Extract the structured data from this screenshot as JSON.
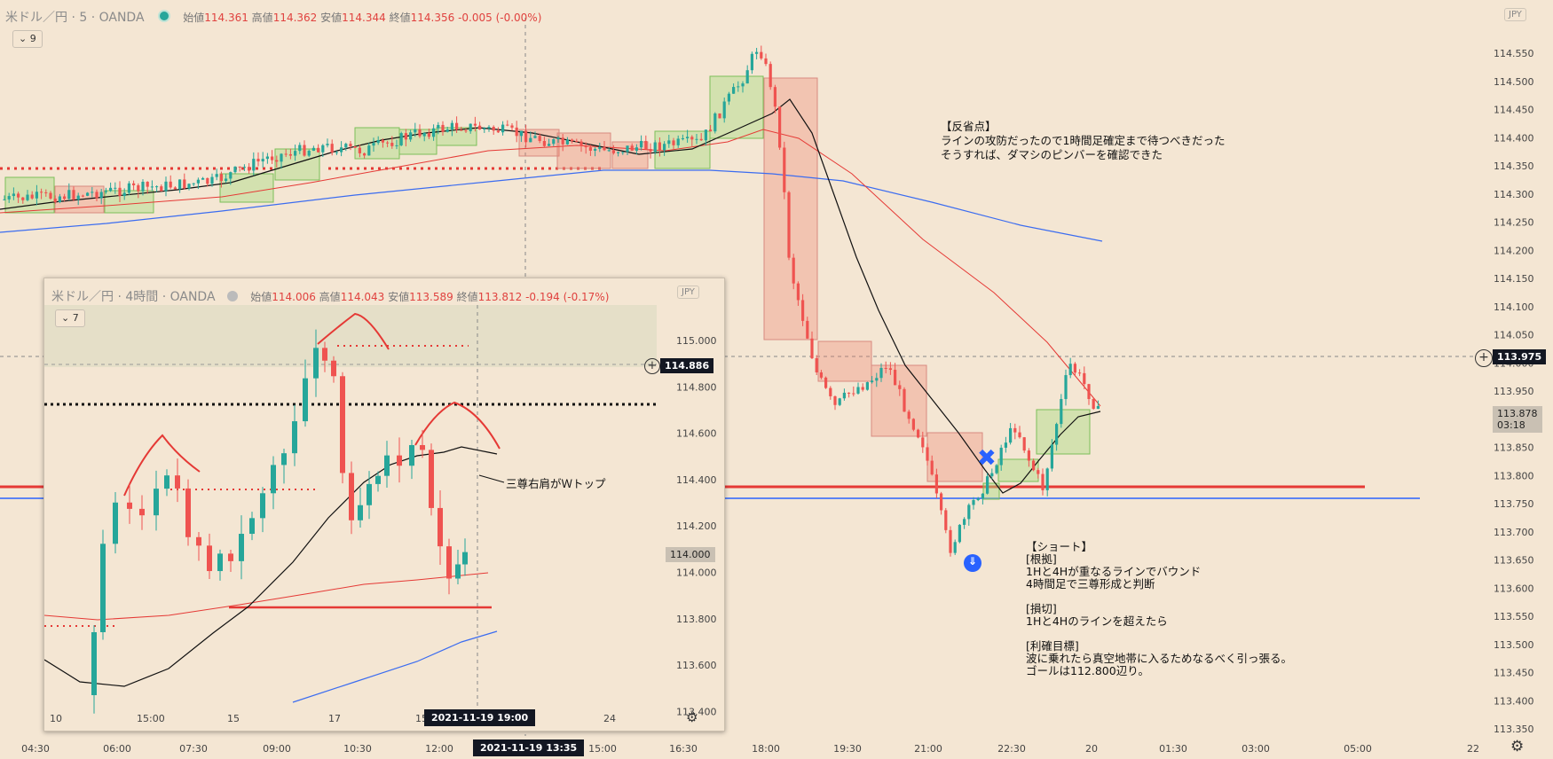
{
  "main": {
    "symbol": "米ドル／円 · 5 · OANDA",
    "ohlc": {
      "o_label": "始値",
      "o": "114.361",
      "h_label": "高値",
      "h": "114.362",
      "l_label": "安値",
      "l": "114.344",
      "c_label": "終値",
      "c": "114.356",
      "chg": "-0.005 (-0.00%)"
    },
    "indicators_badge": "9",
    "currency": "JPY",
    "y_ticks": [
      "114.550",
      "114.500",
      "114.450",
      "114.400",
      "114.350",
      "114.300",
      "114.250",
      "114.200",
      "114.150",
      "114.100",
      "114.050",
      "114.000",
      "113.950",
      "113.900",
      "113.850",
      "113.800",
      "113.750",
      "113.700",
      "113.650",
      "113.600",
      "113.550",
      "113.500",
      "113.450",
      "113.400",
      "113.350"
    ],
    "x_ticks": [
      "04:30",
      "06:00",
      "07:30",
      "09:00",
      "10:30",
      "12:00",
      "13:35",
      "15:00",
      "16:30",
      "18:00",
      "19:30",
      "21:00",
      "22:30",
      "20",
      "01:30",
      "03:00",
      "05:00",
      "22"
    ],
    "crosshair_price": "113.975",
    "last_price": "113.878",
    "countdown": "03:18",
    "crosshair_time": "2021-11-19   13:35",
    "note1": "【反省点】\nラインの攻防だったので1時間足確定まで待つべきだった\nそうすれば、ダマシのピンバーを確認できた",
    "note2": "【ショート】\n[根拠]\n1Hと4Hが重なるラインでバウンド\n4時間足で三尊形成と判断\n\n[損切]\n1Hと4Hのラインを超えたら\n\n[利確目標]\n波に乗れたら真空地帯に入るためなるべく引っ張る。\nゴールは112.800辺り。",
    "colors": {
      "up": "#26a69a",
      "down": "#ef5350",
      "hline": "#e53935",
      "blue": "#2962ff",
      "ma_fast": "#111111",
      "ma_mid": "#e53935",
      "ma_slow": "#3b6cf0"
    }
  },
  "inset": {
    "symbol": "米ドル／円 · 4時間 · OANDA",
    "ohlc": {
      "o_label": "始値",
      "o": "114.006",
      "h_label": "高値",
      "h": "114.043",
      "l_label": "安値",
      "l": "113.589",
      "c_label": "終値",
      "c": "113.812",
      "chg": "-0.194 (-0.17%)"
    },
    "indicators_badge": "7",
    "currency": "JPY",
    "y_ticks": [
      "115.000",
      "114.800",
      "114.600",
      "114.400",
      "114.200",
      "114.000",
      "113.800",
      "113.600",
      "113.400"
    ],
    "x_ticks": [
      "10",
      "15:00",
      "15",
      "17",
      "15:00",
      "24"
    ],
    "crosshair_price": "114.886",
    "last_price": "114.000",
    "crosshair_time": "2021-11-19   19:00",
    "annotation": "三尊右肩がＷトップ"
  }
}
